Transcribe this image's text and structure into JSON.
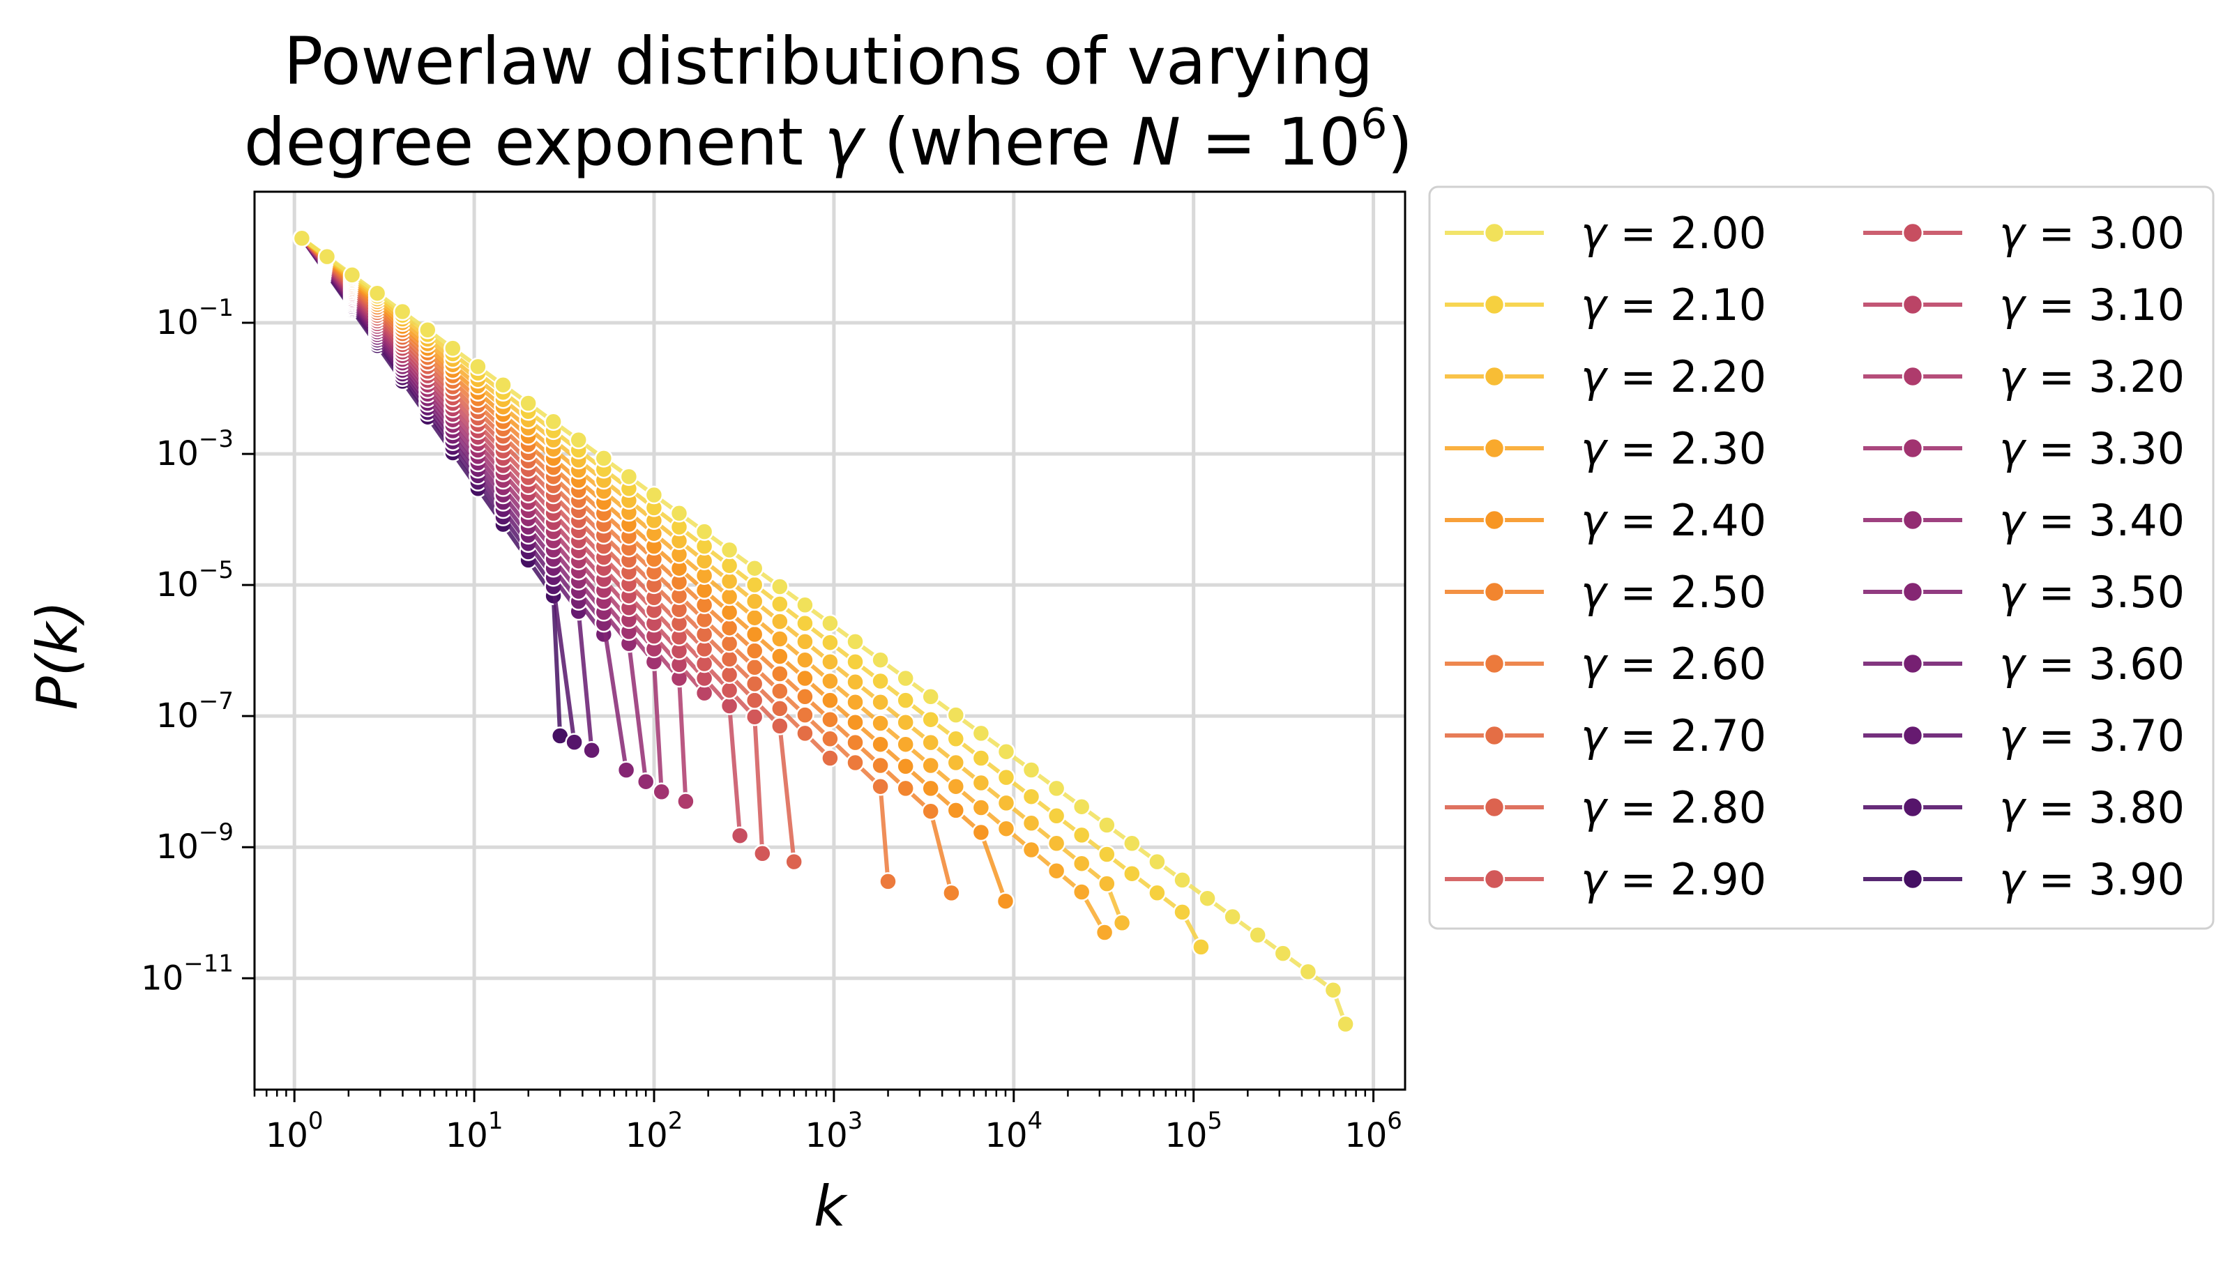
{
  "chart_data": {
    "type": "line",
    "title": "Powerlaw distributions of varying",
    "title_line2_prefix": "degree exponent ",
    "title_gamma_symbol": "γ",
    "title_line2_middle": " (where ",
    "title_n_symbol": "N",
    "title_line2_equals": " = 10",
    "title_exponent": "6",
    "title_line2_suffix": ")",
    "xlabel": "k",
    "ylabel": "P(k)",
    "x_scale": "log",
    "y_scale": "log",
    "xlim": [
      0.6,
      1500000
    ],
    "ylim": [
      2e-13,
      10
    ],
    "grid": true,
    "legend_placement": "outside right, two columns",
    "x_ticks": [
      {
        "base": "10",
        "exp": "0",
        "value": 1
      },
      {
        "base": "10",
        "exp": "1",
        "value": 10
      },
      {
        "base": "10",
        "exp": "2",
        "value": 100
      },
      {
        "base": "10",
        "exp": "3",
        "value": 1000
      },
      {
        "base": "10",
        "exp": "4",
        "value": 10000
      },
      {
        "base": "10",
        "exp": "5",
        "value": 100000
      },
      {
        "base": "10",
        "exp": "6",
        "value": 1000000
      }
    ],
    "y_ticks": [
      {
        "base": "10",
        "exp": "−1",
        "value": 0.1
      },
      {
        "base": "10",
        "exp": "−3",
        "value": 0.001
      },
      {
        "base": "10",
        "exp": "−5",
        "value": 1e-05
      },
      {
        "base": "10",
        "exp": "−7",
        "value": 1e-07
      },
      {
        "base": "10",
        "exp": "−9",
        "value": 1e-09
      },
      {
        "base": "10",
        "exp": "−11",
        "value": 1e-11
      }
    ],
    "series": [
      {
        "name": "γ = 2.00",
        "gamma": 2.0,
        "color": "#f1e15a",
        "kmax": 700000,
        "pmin": 2e-12
      },
      {
        "name": "γ = 2.10",
        "gamma": 2.1,
        "color": "#f6d03f",
        "kmax": 110000,
        "pmin": 3e-11
      },
      {
        "name": "γ = 2.20",
        "gamma": 2.2,
        "color": "#f8bd35",
        "kmax": 40000,
        "pmin": 7e-11
      },
      {
        "name": "γ = 2.30",
        "gamma": 2.3,
        "color": "#f9a92c",
        "kmax": 32000,
        "pmin": 5e-11
      },
      {
        "name": "γ = 2.40",
        "gamma": 2.4,
        "color": "#f79623",
        "kmax": 9000,
        "pmin": 1.5e-10
      },
      {
        "name": "γ = 2.50",
        "gamma": 2.5,
        "color": "#f2852f",
        "kmax": 4500,
        "pmin": 2e-10
      },
      {
        "name": "γ = 2.60",
        "gamma": 2.6,
        "color": "#ec7a3c",
        "kmax": 2000,
        "pmin": 3e-10
      },
      {
        "name": "γ = 2.70",
        "gamma": 2.7,
        "color": "#e46e45",
        "kmax": 1000,
        "pmin": 4e-10
      },
      {
        "name": "γ = 2.80",
        "gamma": 2.8,
        "color": "#dc634f",
        "kmax": 600,
        "pmin": 6e-10
      },
      {
        "name": "γ = 2.90",
        "gamma": 2.9,
        "color": "#d25859",
        "kmax": 400,
        "pmin": 8e-10
      },
      {
        "name": "γ = 3.00",
        "gamma": 3.0,
        "color": "#c74e60",
        "kmax": 300,
        "pmin": 1.5e-09
      },
      {
        "name": "γ = 3.10",
        "gamma": 3.1,
        "color": "#bb4466",
        "kmax": 200,
        "pmin": 3e-09
      },
      {
        "name": "γ = 3.20",
        "gamma": 3.2,
        "color": "#ae3b6c",
        "kmax": 150,
        "pmin": 5e-09
      },
      {
        "name": "γ = 3.30",
        "gamma": 3.3,
        "color": "#a13370",
        "kmax": 110,
        "pmin": 7e-09
      },
      {
        "name": "γ = 3.40",
        "gamma": 3.4,
        "color": "#932c72",
        "kmax": 90,
        "pmin": 1e-08
      },
      {
        "name": "γ = 3.50",
        "gamma": 3.5,
        "color": "#852673",
        "kmax": 70,
        "pmin": 1.5e-08
      },
      {
        "name": "γ = 3.60",
        "gamma": 3.6,
        "color": "#762072",
        "kmax": 55,
        "pmin": 2e-08
      },
      {
        "name": "γ = 3.70",
        "gamma": 3.7,
        "color": "#661a70",
        "kmax": 45,
        "pmin": 3e-08
      },
      {
        "name": "γ = 3.80",
        "gamma": 3.8,
        "color": "#56156b",
        "kmax": 36,
        "pmin": 4e-08
      },
      {
        "name": "γ = 3.90",
        "gamma": 3.9,
        "color": "#451063",
        "kmax": 30,
        "pmin": 5e-08
      }
    ]
  }
}
